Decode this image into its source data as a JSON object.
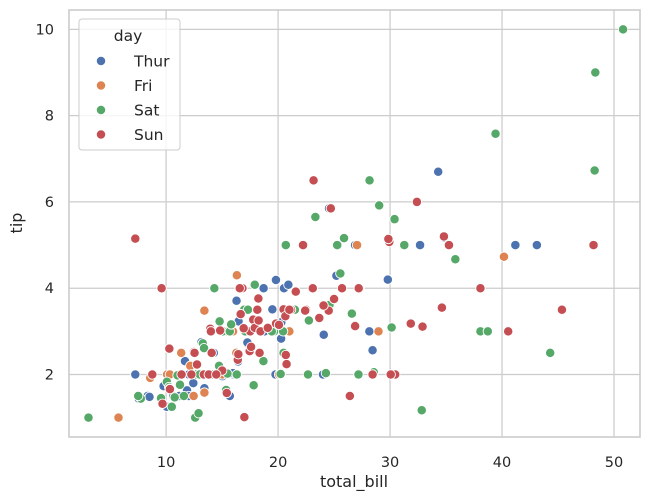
{
  "chart_data": {
    "type": "scatter",
    "title": "",
    "xlabel": "total_bill",
    "ylabel": "tip",
    "xlim": [
      1.33,
      52.32
    ],
    "ylim": [
      0.55,
      10.45
    ],
    "xticks": [
      10,
      20,
      30,
      40,
      50
    ],
    "yticks": [
      2,
      4,
      6,
      8,
      10
    ],
    "grid": true,
    "legend": {
      "title": "day",
      "position": "top-left"
    },
    "series": [
      {
        "name": "Thur",
        "color": "#4c72b0",
        "points": [
          [
            7.25,
            2.0
          ],
          [
            7.56,
            1.44
          ],
          [
            8.35,
            1.5
          ],
          [
            8.52,
            1.48
          ],
          [
            9.78,
            1.73
          ],
          [
            10.07,
            1.25
          ],
          [
            10.33,
            2.0
          ],
          [
            10.65,
            1.5
          ],
          [
            11.17,
            1.5
          ],
          [
            11.87,
            1.63
          ],
          [
            12.03,
            1.5
          ],
          [
            12.43,
            1.8
          ],
          [
            13.03,
            2.0
          ],
          [
            13.13,
            2.0
          ],
          [
            13.51,
            2.0
          ],
          [
            14.26,
            2.5
          ],
          [
            14.48,
            2.0
          ],
          [
            14.52,
            2.0
          ],
          [
            15.95,
            2.0
          ],
          [
            16.0,
            2.0
          ],
          [
            16.29,
            3.71
          ],
          [
            16.47,
            3.23
          ],
          [
            16.66,
            3.4
          ],
          [
            17.29,
            2.71
          ],
          [
            18.29,
            3.76
          ],
          [
            18.78,
            3.0
          ],
          [
            18.71,
            4.0
          ],
          [
            19.44,
            3.0
          ],
          [
            19.49,
            3.51
          ],
          [
            19.81,
            4.19
          ],
          [
            20.27,
            2.83
          ],
          [
            20.29,
            3.21
          ],
          [
            20.53,
            4.0
          ],
          [
            20.92,
            4.08
          ],
          [
            21.01,
            3.0
          ],
          [
            24.01,
            2.0
          ],
          [
            24.08,
            2.92
          ],
          [
            25.21,
            4.29
          ],
          [
            24.55,
            5.85
          ],
          [
            26.88,
            5.0
          ],
          [
            28.15,
            3.0
          ],
          [
            28.44,
            2.56
          ],
          [
            29.8,
            4.2
          ],
          [
            32.68,
            5.0
          ],
          [
            34.3,
            6.7
          ],
          [
            34.83,
            5.17
          ],
          [
            41.19,
            5.0
          ],
          [
            43.11,
            5.0
          ],
          [
            15.98,
            2.03
          ],
          [
            18.35,
            2.5
          ],
          [
            13.16,
            2.75
          ],
          [
            17.26,
            2.74
          ],
          [
            12.03,
            2.0
          ],
          [
            16.43,
            2.3
          ],
          [
            13.42,
            1.68
          ],
          [
            13.81,
            2.0
          ],
          [
            15.04,
            1.96
          ],
          [
            19.77,
            2.0
          ],
          [
            9.68,
            1.32
          ],
          [
            16.45,
            2.47
          ],
          [
            15.69,
            1.5
          ],
          [
            11.69,
            2.31
          ]
        ]
      },
      {
        "name": "Fri",
        "color": "#dd8452",
        "points": [
          [
            5.75,
            1.0
          ],
          [
            8.58,
            1.92
          ],
          [
            10.09,
            2.0
          ],
          [
            11.35,
            2.5
          ],
          [
            12.16,
            2.2
          ],
          [
            12.46,
            1.5
          ],
          [
            13.42,
            3.48
          ],
          [
            13.42,
            1.58
          ],
          [
            15.98,
            3.0
          ],
          [
            16.27,
            2.5
          ],
          [
            16.32,
            4.3
          ],
          [
            21.01,
            3.0
          ],
          [
            22.49,
            3.5
          ],
          [
            27.05,
            5.0
          ],
          [
            27.28,
            4.0
          ],
          [
            28.97,
            3.0
          ],
          [
            40.17,
            4.73
          ],
          [
            10.34,
            2.0
          ],
          [
            15.38,
            3.0
          ],
          [
            12.74,
            2.01
          ],
          [
            13.28,
            2.72
          ],
          [
            11.35,
            2.0
          ],
          [
            15.04,
            2.0
          ],
          [
            16.99,
            3.0
          ],
          [
            20.09,
            2.0
          ]
        ]
      },
      {
        "name": "Sat",
        "color": "#55a868",
        "points": [
          [
            3.07,
            1.0
          ],
          [
            7.74,
            1.44
          ],
          [
            10.07,
            1.83
          ],
          [
            10.27,
            1.71
          ],
          [
            10.51,
            1.25
          ],
          [
            10.77,
            1.47
          ],
          [
            11.02,
            1.98
          ],
          [
            11.24,
            1.76
          ],
          [
            11.59,
            1.5
          ],
          [
            12.6,
            1.0
          ],
          [
            12.9,
            1.1
          ],
          [
            12.69,
            2.0
          ],
          [
            13.0,
            2.0
          ],
          [
            13.28,
            2.72
          ],
          [
            13.39,
            2.61
          ],
          [
            14.07,
            2.5
          ],
          [
            14.15,
            2.0
          ],
          [
            14.31,
            4.0
          ],
          [
            14.78,
            3.23
          ],
          [
            15.06,
            3.0
          ],
          [
            15.36,
            1.64
          ],
          [
            15.48,
            2.02
          ],
          [
            15.69,
            3.0
          ],
          [
            16.58,
            4.0
          ],
          [
            16.93,
            3.07
          ],
          [
            17.07,
            3.0
          ],
          [
            17.82,
            1.75
          ],
          [
            17.92,
            4.08
          ],
          [
            18.15,
            3.5
          ],
          [
            18.26,
            3.25
          ],
          [
            18.35,
            2.5
          ],
          [
            18.43,
            3.0
          ],
          [
            18.69,
            2.31
          ],
          [
            19.08,
            3.08
          ],
          [
            19.65,
            3.0
          ],
          [
            20.23,
            2.01
          ],
          [
            20.45,
            3.0
          ],
          [
            20.49,
            2.5
          ],
          [
            20.65,
            3.35
          ],
          [
            21.5,
            3.5
          ],
          [
            21.58,
            3.92
          ],
          [
            22.67,
            2.0
          ],
          [
            22.75,
            3.25
          ],
          [
            23.1,
            4.0
          ],
          [
            24.06,
            3.6
          ],
          [
            24.27,
            2.03
          ],
          [
            25.28,
            5.0
          ],
          [
            25.56,
            4.34
          ],
          [
            25.89,
            5.16
          ],
          [
            26.86,
            3.14
          ],
          [
            27.18,
            2.0
          ],
          [
            28.17,
            6.5
          ],
          [
            30.14,
            3.09
          ],
          [
            30.4,
            5.6
          ],
          [
            31.27,
            5.0
          ],
          [
            32.83,
            1.17
          ],
          [
            35.83,
            4.67
          ],
          [
            38.07,
            3.0
          ],
          [
            38.73,
            3.0
          ],
          [
            39.42,
            7.58
          ],
          [
            44.3,
            2.5
          ],
          [
            48.27,
            6.73
          ],
          [
            48.33,
            9.0
          ],
          [
            50.81,
            10.0
          ],
          [
            7.51,
            1.5
          ],
          [
            9.55,
            1.45
          ],
          [
            12.46,
            2.5
          ],
          [
            14.73,
            2.2
          ],
          [
            16.97,
            3.5
          ],
          [
            18.24,
            3.76
          ],
          [
            15.81,
            3.16
          ],
          [
            17.31,
            3.5
          ],
          [
            20.69,
            5.0
          ],
          [
            24.59,
            3.61
          ],
          [
            26.41,
            1.5
          ],
          [
            28.55,
            2.05
          ],
          [
            29.03,
            5.92
          ],
          [
            22.42,
            3.48
          ],
          [
            25.0,
            3.75
          ],
          [
            20.76,
            2.24
          ],
          [
            10.29,
            2.6
          ],
          [
            16.31,
            2.0
          ],
          [
            19.44,
            3.0
          ],
          [
            22.23,
            5.0
          ],
          [
            26.59,
            3.41
          ],
          [
            13.57,
            2.0
          ],
          [
            23.33,
            5.65
          ],
          [
            20.08,
            3.15
          ]
        ]
      },
      {
        "name": "Sun",
        "color": "#c44e52",
        "points": [
          [
            7.25,
            5.15
          ],
          [
            8.77,
            2.0
          ],
          [
            9.6,
            4.0
          ],
          [
            10.29,
            2.6
          ],
          [
            10.33,
            1.67
          ],
          [
            10.34,
            1.66
          ],
          [
            11.38,
            2.0
          ],
          [
            12.26,
            2.0
          ],
          [
            12.48,
            2.52
          ],
          [
            13.37,
            2.0
          ],
          [
            13.94,
            3.06
          ],
          [
            14.0,
            3.0
          ],
          [
            14.83,
            3.02
          ],
          [
            15.42,
            1.57
          ],
          [
            16.4,
            2.34
          ],
          [
            16.82,
            4.0
          ],
          [
            16.99,
            1.01
          ],
          [
            17.46,
            2.54
          ],
          [
            17.51,
            3.0
          ],
          [
            17.78,
            3.27
          ],
          [
            18.24,
            3.76
          ],
          [
            19.82,
            3.18
          ],
          [
            20.69,
            2.45
          ],
          [
            20.76,
            2.24
          ],
          [
            21.16,
            3.5
          ],
          [
            21.58,
            3.92
          ],
          [
            22.49,
            3.5
          ],
          [
            23.17,
            6.5
          ],
          [
            23.68,
            3.31
          ],
          [
            24.71,
            5.85
          ],
          [
            25.0,
            3.75
          ],
          [
            25.71,
            4.0
          ],
          [
            26.41,
            1.5
          ],
          [
            29.93,
            5.07
          ],
          [
            30.46,
            2.0
          ],
          [
            31.85,
            3.18
          ],
          [
            32.4,
            6.0
          ],
          [
            34.63,
            3.55
          ],
          [
            34.81,
            5.2
          ],
          [
            35.26,
            5.0
          ],
          [
            40.55,
            3.0
          ],
          [
            45.35,
            3.5
          ],
          [
            48.17,
            5.0
          ],
          [
            14.07,
            2.5
          ],
          [
            16.93,
            3.07
          ],
          [
            18.15,
            3.5
          ],
          [
            16.66,
            3.4
          ],
          [
            13.81,
            2.0
          ],
          [
            22.23,
            5.0
          ],
          [
            17.92,
            3.08
          ],
          [
            20.08,
            3.15
          ],
          [
            24.52,
            3.48
          ],
          [
            27.2,
            4.0
          ],
          [
            24.06,
            3.6
          ],
          [
            20.49,
            3.51
          ],
          [
            16.45,
            2.47
          ],
          [
            18.43,
            3.0
          ],
          [
            19.08,
            3.08
          ],
          [
            9.68,
            1.32
          ],
          [
            12.54,
            2.5
          ],
          [
            17.59,
            2.64
          ],
          [
            20.65,
            3.35
          ],
          [
            26.88,
            3.12
          ],
          [
            29.85,
            5.14
          ],
          [
            18.26,
            3.25
          ],
          [
            38.07,
            4.0
          ],
          [
            15.01,
            2.09
          ],
          [
            12.76,
            2.23
          ],
          [
            14.48,
            2.0
          ],
          [
            22.42,
            3.48
          ],
          [
            30.06,
            2.0
          ],
          [
            18.35,
            2.5
          ],
          [
            32.9,
            3.11
          ],
          [
            21.01,
            3.5
          ],
          [
            23.1,
            4.0
          ],
          [
            16.58,
            4.0
          ],
          [
            28.44,
            2.0
          ]
        ]
      }
    ]
  }
}
